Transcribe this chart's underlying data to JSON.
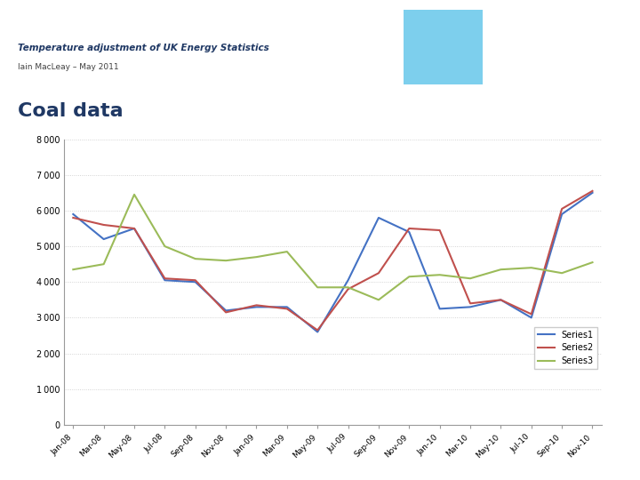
{
  "title_main": "Temperature adjustment of UK Energy Statistics",
  "title_sub": "Iain MacLeay – May 2011",
  "section_title": "Coal data",
  "x_labels": [
    "Jan-08",
    "Mar-08",
    "May-08",
    "Jul-08",
    "Sep-08",
    "Nov-08",
    "Jan-09",
    "Mar-09",
    "May-09",
    "Jul-09",
    "Sep-09",
    "Nov-09",
    "Jan-10",
    "Mar-10",
    "May-10",
    "Jul-10",
    "Sep-10",
    "Nov-10"
  ],
  "series1": [
    5900,
    5200,
    5500,
    4050,
    4000,
    3200,
    3300,
    3300,
    2600,
    4050,
    5800,
    5400,
    3250,
    3300,
    3500,
    3000,
    5900,
    6500
  ],
  "series2": [
    5800,
    5600,
    5500,
    4100,
    4050,
    3150,
    3350,
    3250,
    2650,
    3800,
    4250,
    5500,
    5450,
    3400,
    3500,
    3100,
    6050,
    6550
  ],
  "series3": [
    4350,
    4500,
    6450,
    5000,
    4650,
    4600,
    4700,
    4850,
    3850,
    3850,
    3500,
    4150,
    4200,
    4100,
    4350,
    4400,
    4250,
    4550
  ],
  "color1": "#4472C4",
  "color2": "#C0504D",
  "color3": "#9BBB59",
  "legend_labels": [
    "Series1",
    "Series2",
    "Series3"
  ],
  "ylim": [
    0,
    8000
  ],
  "yticks": [
    0,
    1000,
    2000,
    3000,
    4000,
    5000,
    6000,
    7000,
    8000
  ],
  "bg_color": "#ffffff",
  "plot_bg": "#ffffff",
  "header_bg": "#ffffff",
  "tan_bar_color": "#C8B89A",
  "coal_section_bg": "#f5f5f5",
  "title_color": "#1F3864",
  "sub_title_color": "#404040",
  "section_title_color": "#1F3864",
  "grid_color": "#c8c8c8",
  "axis_color": "#999999"
}
